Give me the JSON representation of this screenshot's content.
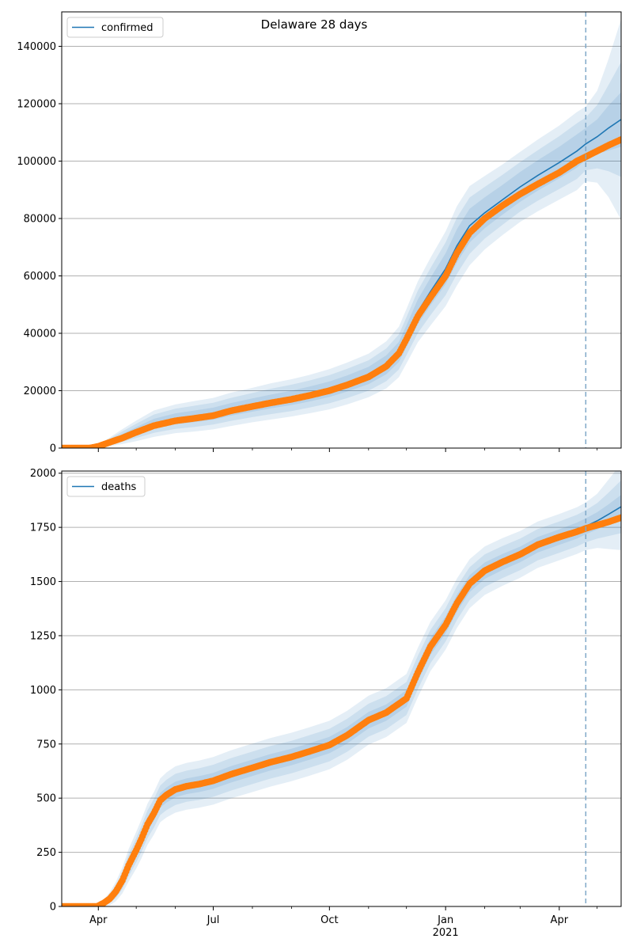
{
  "figure": {
    "title": "Delaware 28 days"
  },
  "colors": {
    "model": "#1f77b4",
    "band": "#1f77b4",
    "observed": "#ff7f0e",
    "grid": "#b0b0b0",
    "forecast_line": "#7fa8c8"
  },
  "x_axis": {
    "ticks": [
      {
        "date": "2020-04-01",
        "label": "Apr",
        "sublabel": ""
      },
      {
        "date": "2020-07-01",
        "label": "Jul",
        "sublabel": ""
      },
      {
        "date": "2020-10-01",
        "label": "Oct",
        "sublabel": ""
      },
      {
        "date": "2021-01-01",
        "label": "Jan",
        "sublabel": "2021"
      },
      {
        "date": "2021-04-01",
        "label": "Apr",
        "sublabel": ""
      }
    ],
    "minor_ticks": [
      "2020-05-01",
      "2020-06-01",
      "2020-08-01",
      "2020-09-01",
      "2020-11-01",
      "2020-12-01",
      "2021-02-01",
      "2021-03-01",
      "2021-05-01"
    ],
    "range": [
      "2020-03-03",
      "2021-05-20"
    ]
  },
  "chart_data": [
    {
      "type": "line",
      "legend": "confirmed",
      "legend_position": "top-left",
      "ylim": [
        0,
        152000
      ],
      "yticks": [
        0,
        20000,
        40000,
        60000,
        80000,
        100000,
        120000,
        140000
      ],
      "grid": "horizontal",
      "forecast_start": "2021-04-22",
      "observed": {
        "x": [
          "2020-03-03",
          "2020-03-25",
          "2020-04-01",
          "2020-04-10",
          "2020-04-20",
          "2020-05-01",
          "2020-05-15",
          "2020-06-01",
          "2020-06-15",
          "2020-07-01",
          "2020-07-15",
          "2020-08-01",
          "2020-08-15",
          "2020-09-01",
          "2020-09-15",
          "2020-10-01",
          "2020-10-15",
          "2020-11-01",
          "2020-11-15",
          "2020-11-25",
          "2020-12-01",
          "2020-12-10",
          "2020-12-20",
          "2021-01-01",
          "2021-01-10",
          "2021-01-20",
          "2021-02-01",
          "2021-02-15",
          "2021-03-01",
          "2021-03-15",
          "2021-04-01",
          "2021-04-15",
          "2021-04-22",
          "2021-05-01",
          "2021-05-10",
          "2021-05-20"
        ],
        "y": [
          0,
          0,
          600,
          2000,
          3500,
          5500,
          7800,
          9500,
          10300,
          11300,
          13000,
          14500,
          15700,
          17000,
          18300,
          20000,
          22000,
          24800,
          28500,
          33000,
          38000,
          46000,
          52500,
          60000,
          68000,
          75000,
          80000,
          84500,
          88500,
          92000,
          96000,
          100000,
          101500,
          103500,
          105500,
          107500
        ]
      },
      "model": {
        "x": [
          "2020-03-03",
          "2020-03-25",
          "2020-04-01",
          "2020-04-10",
          "2020-04-20",
          "2020-05-01",
          "2020-05-15",
          "2020-06-01",
          "2020-06-15",
          "2020-07-01",
          "2020-07-15",
          "2020-08-01",
          "2020-08-15",
          "2020-09-01",
          "2020-09-15",
          "2020-10-01",
          "2020-10-15",
          "2020-11-01",
          "2020-11-15",
          "2020-11-25",
          "2020-12-01",
          "2020-12-10",
          "2020-12-20",
          "2021-01-01",
          "2021-01-10",
          "2021-01-20",
          "2021-02-01",
          "2021-02-15",
          "2021-03-01",
          "2021-03-15",
          "2021-04-01",
          "2021-04-15",
          "2021-04-22",
          "2021-05-01",
          "2021-05-10",
          "2021-05-20"
        ],
        "y": [
          0,
          0,
          700,
          2200,
          4000,
          6000,
          8500,
          10200,
          11000,
          12000,
          13500,
          15000,
          16200,
          17500,
          18800,
          20500,
          22500,
          25300,
          29000,
          33500,
          39000,
          47500,
          54500,
          62500,
          70500,
          77500,
          82000,
          86500,
          91000,
          95000,
          99500,
          103500,
          106000,
          108500,
          111500,
          114500
        ],
        "band_inner": [
          0,
          0,
          150,
          500,
          900,
          1300,
          1700,
          1900,
          2000,
          2100,
          2200,
          2300,
          2400,
          2500,
          2600,
          2700,
          2800,
          3000,
          3300,
          3500,
          3800,
          4300,
          4800,
          5400,
          5800,
          5900,
          5400,
          5200,
          5200,
          5300,
          5500,
          5800,
          5500,
          6000,
          7800,
          9500
        ],
        "band_mid": [
          0,
          0,
          300,
          1000,
          1800,
          2500,
          3200,
          3500,
          3700,
          3800,
          4000,
          4200,
          4400,
          4600,
          4700,
          4900,
          5100,
          5300,
          5700,
          6100,
          6600,
          7400,
          8200,
          9200,
          9800,
          9800,
          9000,
          8700,
          8600,
          8800,
          9200,
          9700,
          9200,
          11000,
          15000,
          20000
        ],
        "band_outer": [
          0,
          0,
          450,
          1500,
          2600,
          3600,
          4600,
          5000,
          5300,
          5500,
          5800,
          6000,
          6300,
          6500,
          6700,
          7000,
          7300,
          7600,
          8200,
          8800,
          9500,
          10600,
          11800,
          13000,
          13800,
          13800,
          12800,
          12300,
          12200,
          12500,
          12900,
          13600,
          13000,
          16000,
          24000,
          35000
        ]
      }
    },
    {
      "type": "line",
      "legend": "deaths",
      "legend_position": "top-left",
      "ylim": [
        0,
        2010
      ],
      "yticks": [
        0,
        250,
        500,
        750,
        1000,
        1250,
        1500,
        1750,
        2000
      ],
      "grid": "horizontal",
      "forecast_start": "2021-04-22",
      "observed": {
        "x": [
          "2020-03-03",
          "2020-03-31",
          "2020-04-05",
          "2020-04-10",
          "2020-04-15",
          "2020-04-20",
          "2020-04-25",
          "2020-05-01",
          "2020-05-05",
          "2020-05-10",
          "2020-05-15",
          "2020-05-20",
          "2020-05-25",
          "2020-06-01",
          "2020-06-10",
          "2020-06-20",
          "2020-07-01",
          "2020-07-15",
          "2020-08-01",
          "2020-08-15",
          "2020-09-01",
          "2020-09-15",
          "2020-10-01",
          "2020-10-15",
          "2020-11-01",
          "2020-11-15",
          "2020-12-01",
          "2020-12-10",
          "2020-12-20",
          "2021-01-01",
          "2021-01-10",
          "2021-01-20",
          "2021-02-01",
          "2021-02-15",
          "2021-03-01",
          "2021-03-15",
          "2021-04-01",
          "2021-04-15",
          "2021-04-22",
          "2021-05-01",
          "2021-05-10",
          "2021-05-20"
        ],
        "y": [
          0,
          0,
          15,
          35,
          70,
          120,
          190,
          260,
          310,
          380,
          430,
          490,
          515,
          540,
          555,
          565,
          580,
          610,
          640,
          665,
          690,
          715,
          745,
          790,
          860,
          895,
          960,
          1080,
          1200,
          1300,
          1400,
          1490,
          1550,
          1590,
          1625,
          1670,
          1705,
          1730,
          1745,
          1760,
          1775,
          1795
        ]
      },
      "model": {
        "x": [
          "2020-03-03",
          "2020-03-31",
          "2020-04-05",
          "2020-04-10",
          "2020-04-15",
          "2020-04-20",
          "2020-04-25",
          "2020-05-01",
          "2020-05-05",
          "2020-05-10",
          "2020-05-15",
          "2020-05-20",
          "2020-05-25",
          "2020-06-01",
          "2020-06-10",
          "2020-06-20",
          "2020-07-01",
          "2020-07-15",
          "2020-08-01",
          "2020-08-15",
          "2020-09-01",
          "2020-09-15",
          "2020-10-01",
          "2020-10-15",
          "2020-11-01",
          "2020-11-15",
          "2020-12-01",
          "2020-12-10",
          "2020-12-20",
          "2021-01-01",
          "2021-01-10",
          "2021-01-20",
          "2021-02-01",
          "2021-02-15",
          "2021-03-01",
          "2021-03-15",
          "2021-04-01",
          "2021-04-15",
          "2021-04-22",
          "2021-05-01",
          "2021-05-10",
          "2021-05-20"
        ],
        "y": [
          0,
          0,
          15,
          35,
          70,
          120,
          190,
          260,
          310,
          380,
          430,
          490,
          515,
          540,
          555,
          565,
          580,
          610,
          640,
          665,
          690,
          715,
          745,
          790,
          860,
          895,
          960,
          1080,
          1200,
          1300,
          1400,
          1490,
          1550,
          1590,
          1625,
          1670,
          1705,
          1735,
          1755,
          1780,
          1810,
          1845
        ],
        "band_inner": [
          0,
          0,
          5,
          10,
          15,
          20,
          25,
          28,
          30,
          32,
          33,
          34,
          35,
          36,
          36,
          37,
          37,
          38,
          38,
          38,
          38,
          38,
          38,
          38,
          38,
          38,
          38,
          39,
          39,
          39,
          39,
          39,
          38,
          37,
          36,
          36,
          36,
          37,
          37,
          40,
          46,
          55
        ],
        "band_mid": [
          0,
          0,
          10,
          20,
          30,
          40,
          50,
          56,
          60,
          64,
          66,
          68,
          70,
          72,
          72,
          73,
          74,
          75,
          75,
          75,
          75,
          75,
          75,
          76,
          76,
          76,
          76,
          77,
          77,
          77,
          77,
          76,
          75,
          74,
          73,
          72,
          72,
          73,
          74,
          82,
          100,
          122
        ],
        "band_outer": [
          0,
          0,
          15,
          30,
          45,
          60,
          75,
          85,
          90,
          95,
          98,
          101,
          104,
          107,
          108,
          109,
          110,
          111,
          112,
          112,
          112,
          112,
          112,
          113,
          113,
          113,
          113,
          114,
          114,
          114,
          114,
          113,
          112,
          110,
          108,
          107,
          107,
          108,
          110,
          125,
          160,
          200
        ]
      }
    }
  ]
}
